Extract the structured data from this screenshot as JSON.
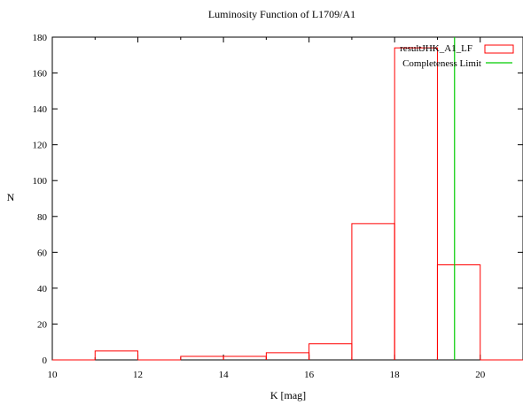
{
  "chart_data": {
    "type": "bar",
    "title": "Luminosity Function of L1709/A1",
    "xlabel": "K [mag]",
    "ylabel": "N",
    "xlim": [
      10,
      21
    ],
    "ylim": [
      0,
      180
    ],
    "x_ticks": [
      10,
      12,
      14,
      16,
      18,
      20
    ],
    "y_ticks": [
      0,
      20,
      40,
      60,
      80,
      100,
      120,
      140,
      160,
      180
    ],
    "grid": false,
    "legend_position": "top-right",
    "series": [
      {
        "name": "resultJHK_A1_LF",
        "style": "histogram-steps",
        "color": "#ff0000",
        "bins": [
          {
            "x0": 10,
            "x1": 11,
            "value": 0
          },
          {
            "x0": 11,
            "x1": 12,
            "value": 5
          },
          {
            "x0": 12,
            "x1": 13,
            "value": 0
          },
          {
            "x0": 13,
            "x1": 14,
            "value": 2
          },
          {
            "x0": 14,
            "x1": 15,
            "value": 2
          },
          {
            "x0": 15,
            "x1": 16,
            "value": 4
          },
          {
            "x0": 16,
            "x1": 17,
            "value": 9
          },
          {
            "x0": 17,
            "x1": 18,
            "value": 76
          },
          {
            "x0": 18,
            "x1": 19,
            "value": 174
          },
          {
            "x0": 19,
            "x1": 20,
            "value": 53
          },
          {
            "x0": 20,
            "x1": 21,
            "value": 0
          }
        ]
      },
      {
        "name": "Completeness Limit",
        "style": "vertical-line",
        "color": "#00cc00",
        "x": 19.4
      }
    ]
  }
}
